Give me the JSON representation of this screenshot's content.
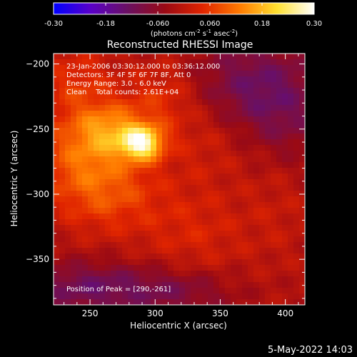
{
  "chart_data": {
    "type": "heatmap",
    "title": "Reconstructed RHESSI Image",
    "xlabel": "Heliocentric X (arcsec)",
    "ylabel": "Heliocentric Y (arcsec)",
    "xlim": [
      222,
      415
    ],
    "ylim": [
      -385,
      -192
    ],
    "xticks": [
      250,
      300,
      350,
      400
    ],
    "yticks": [
      -200,
      -250,
      -300,
      -350
    ],
    "colorbar": {
      "range": [
        -0.3,
        0.3
      ],
      "ticks": [
        "-0.30",
        "-0.18",
        "-0.060",
        "0.060",
        "0.18",
        "0.30"
      ],
      "tick_values": [
        -0.3,
        -0.18,
        -0.06,
        0.06,
        0.18,
        0.3
      ],
      "unit_prefix": "(photons cm",
      "unit_exp1": "-2",
      "unit_mid1": " s",
      "unit_exp2": "-1",
      "unit_mid2": " asec",
      "unit_exp3": "-2",
      "unit_suffix": ")",
      "colors": [
        "#0000ff",
        "#5a00c8",
        "#6a1060",
        "#9a0a14",
        "#e02400",
        "#ff7a00",
        "#ffe030",
        "#ffffff"
      ]
    },
    "annotations": [
      "23-Jan-2006 03:30:12.000 to 03:36:12.000",
      "Detectors: 3F 4F 5F 6F 7F 8F, Att 0",
      "Energy Range: 3.0 - 6.0 keV",
      "Clean    Total counts: 2.61E+04"
    ],
    "peak_label": "Position of Peak = [290,-261]",
    "peak": [
      290,
      -261
    ],
    "sources": [
      {
        "x": 290,
        "y": -261,
        "amp": 0.24,
        "sx": 11,
        "sy": 9
      },
      {
        "x": 268,
        "y": -250,
        "amp": 0.12,
        "sx": 20,
        "sy": 14
      },
      {
        "x": 245,
        "y": -268,
        "amp": 0.1,
        "sx": 26,
        "sy": 22
      },
      {
        "x": 262,
        "y": -300,
        "amp": 0.09,
        "sx": 30,
        "sy": 22
      },
      {
        "x": 240,
        "y": -215,
        "amp": 0.07,
        "sx": 22,
        "sy": 20
      },
      {
        "x": 305,
        "y": -225,
        "amp": 0.06,
        "sx": 18,
        "sy": 20
      },
      {
        "x": 330,
        "y": -330,
        "amp": 0.05,
        "sx": 30,
        "sy": 25
      },
      {
        "x": 340,
        "y": -260,
        "amp": 0.04,
        "sx": 25,
        "sy": 25
      },
      {
        "x": 395,
        "y": -300,
        "amp": 0.03,
        "sx": 20,
        "sy": 40
      },
      {
        "x": 250,
        "y": -372,
        "amp": -0.1,
        "sx": 40,
        "sy": 14
      },
      {
        "x": 370,
        "y": -215,
        "amp": -0.08,
        "sx": 30,
        "sy": 25
      },
      {
        "x": 400,
        "y": -240,
        "amp": -0.07,
        "sx": 25,
        "sy": 30
      },
      {
        "x": 320,
        "y": -375,
        "amp": -0.06,
        "sx": 30,
        "sy": 12
      }
    ],
    "background": -0.02
  },
  "footer": {
    "timestamp": "5-May-2022 14:03"
  }
}
